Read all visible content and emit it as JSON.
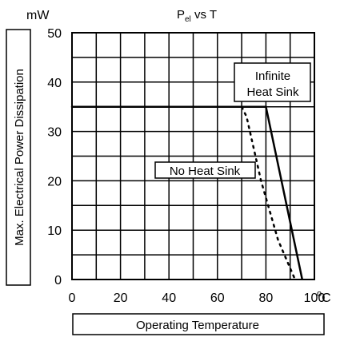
{
  "chart_data": {
    "type": "line",
    "title": "P",
    "title_subscript": "el",
    "title_rest": " vs T",
    "y_unit": "mW",
    "ylabel": "Max. Electrical Power Dissipation",
    "xlabel": "Operating Temperature",
    "x_unit_superscript": "o",
    "x_unit_rest": "C",
    "xlim": [
      0,
      100
    ],
    "ylim": [
      0,
      50
    ],
    "x_ticks": [
      0,
      20,
      40,
      60,
      80,
      100
    ],
    "x_tick_labels": [
      "0",
      "20",
      "40",
      "60",
      "80",
      "100"
    ],
    "y_ticks": [
      0,
      10,
      20,
      30,
      40,
      50
    ],
    "y_tick_labels": [
      "0",
      "10",
      "20",
      "30",
      "40",
      "50"
    ],
    "grid": true,
    "series": [
      {
        "style": "solid",
        "points": [
          [
            0,
            35
          ],
          [
            80,
            35
          ],
          [
            95,
            0
          ]
        ],
        "annotation": [
          "Infinite",
          "Heat Sink"
        ]
      },
      {
        "style": "dotted",
        "points": [
          [
            0,
            35
          ],
          [
            70,
            35
          ],
          [
            72,
            33
          ],
          [
            78,
            20
          ],
          [
            85,
            8
          ],
          [
            92,
            0
          ]
        ],
        "annotation": [
          "No Heat Sink"
        ]
      }
    ]
  }
}
